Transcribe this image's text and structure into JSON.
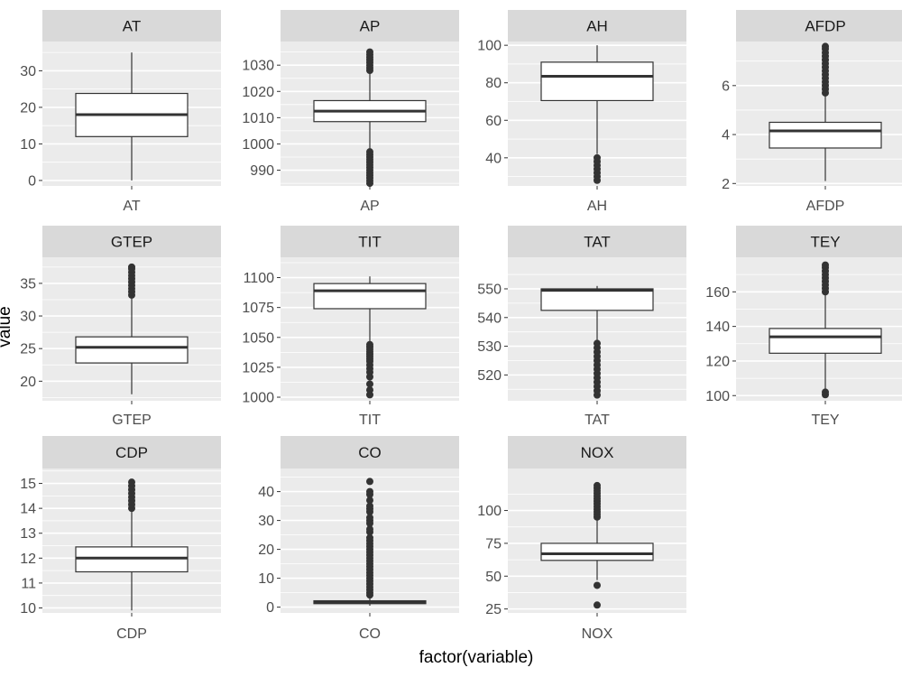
{
  "chart_data": {
    "type": "boxplot",
    "xlabel": "factor(variable)",
    "ylabel": "value",
    "colors": {
      "panel_background": "#ebebeb",
      "strip_background": "#d9d9d9",
      "grid": "#ffffff",
      "box_fill": "#ffffff",
      "box_line": "#333333"
    },
    "panels": [
      {
        "name": "AT",
        "ylim": [
          -1.5,
          38
        ],
        "yticks": [
          0,
          10,
          20,
          30
        ],
        "stats": {
          "lower_whisker": 0,
          "q1": 12,
          "median": 18,
          "q3": 23.8,
          "upper_whisker": 35
        },
        "outliers": []
      },
      {
        "name": "AP",
        "ylim": [
          984,
          1039
        ],
        "yticks": [
          990,
          1000,
          1010,
          1020,
          1030
        ],
        "stats": {
          "lower_whisker": 998,
          "q1": 1008.5,
          "median": 1012.5,
          "q3": 1016.5,
          "upper_whisker": 1027
        },
        "outliers": [
          985,
          986,
          987,
          988,
          989,
          990,
          991,
          992,
          993,
          994,
          995,
          996,
          997,
          1028,
          1029,
          1030,
          1031,
          1032,
          1033,
          1034,
          1035
        ]
      },
      {
        "name": "AH",
        "ylim": [
          25,
          102
        ],
        "yticks": [
          40,
          60,
          80,
          100
        ],
        "stats": {
          "lower_whisker": 42,
          "q1": 70.5,
          "median": 83.5,
          "q3": 91,
          "upper_whisker": 100
        },
        "outliers": [
          28,
          30,
          32,
          34,
          36,
          38,
          40
        ]
      },
      {
        "name": "AFDP",
        "ylim": [
          1.9,
          7.8
        ],
        "yticks": [
          2,
          4,
          6
        ],
        "stats": {
          "lower_whisker": 2.1,
          "q1": 3.45,
          "median": 4.15,
          "q3": 4.5,
          "upper_whisker": 5.6
        },
        "outliers": [
          5.7,
          5.85,
          6.0,
          6.15,
          6.3,
          6.45,
          6.6,
          6.75,
          6.9,
          7.05,
          7.2,
          7.35,
          7.5,
          7.6
        ]
      },
      {
        "name": "GTEP",
        "ylim": [
          17,
          39
        ],
        "yticks": [
          20,
          25,
          30,
          35
        ],
        "stats": {
          "lower_whisker": 18,
          "q1": 22.8,
          "median": 25.2,
          "q3": 26.8,
          "upper_whisker": 33
        },
        "outliers": [
          33.2,
          33.7,
          34.2,
          34.7,
          35.2,
          35.7,
          36.2,
          36.7,
          37.2,
          37.5
        ]
      },
      {
        "name": "TIT",
        "ylim": [
          997,
          1117
        ],
        "yticks": [
          1000,
          1025,
          1050,
          1075,
          1100
        ],
        "stats": {
          "lower_whisker": 1045,
          "q1": 1074,
          "median": 1089,
          "q3": 1095,
          "upper_whisker": 1101
        },
        "outliers": [
          1002,
          1006,
          1011,
          1017,
          1021,
          1024,
          1027,
          1030,
          1032,
          1034,
          1036,
          1038,
          1040,
          1042,
          1044
        ]
      },
      {
        "name": "TAT",
        "ylim": [
          511,
          561
        ],
        "yticks": [
          520,
          530,
          540,
          550
        ],
        "stats": {
          "lower_whisker": 532,
          "q1": 542.5,
          "median": 549.5,
          "q3": 550,
          "upper_whisker": 551
        },
        "outliers": [
          513,
          514.5,
          516,
          517.5,
          519,
          520.5,
          522,
          523.5,
          525,
          526.5,
          528,
          529.5,
          531
        ]
      },
      {
        "name": "TEY",
        "ylim": [
          97,
          180
        ],
        "yticks": [
          100,
          120,
          140,
          160
        ],
        "stats": {
          "lower_whisker": 104,
          "q1": 124.5,
          "median": 134,
          "q3": 138.8,
          "upper_whisker": 159
        },
        "outliers": [
          100.5,
          102,
          160,
          162,
          164,
          166,
          168,
          170,
          172,
          174,
          175.5
        ]
      },
      {
        "name": "CDP",
        "ylim": [
          9.8,
          15.6
        ],
        "yticks": [
          10,
          11,
          12,
          13,
          14,
          15
        ],
        "stats": {
          "lower_whisker": 9.9,
          "q1": 11.45,
          "median": 12.0,
          "q3": 12.45,
          "upper_whisker": 13.9
        },
        "outliers": [
          14.0,
          14.15,
          14.3,
          14.45,
          14.6,
          14.75,
          14.9,
          15.05
        ]
      },
      {
        "name": "CO",
        "ylim": [
          -2,
          48
        ],
        "yticks": [
          0,
          10,
          20,
          30,
          40
        ],
        "stats": {
          "lower_whisker": 0.5,
          "q1": 1.2,
          "median": 1.6,
          "q3": 2.2,
          "upper_whisker": 3.8
        },
        "outliers": [
          4.2,
          5,
          6,
          7,
          8,
          9,
          10,
          11,
          12,
          13,
          14,
          15,
          16,
          17,
          18,
          19,
          20,
          21,
          22,
          23,
          24,
          26,
          27,
          29,
          30,
          31,
          33,
          34,
          35,
          37,
          39,
          40,
          43.5
        ]
      },
      {
        "name": "NOX",
        "ylim": [
          22,
          132
        ],
        "yticks": [
          25,
          50,
          75,
          100
        ],
        "stats": {
          "lower_whisker": 47,
          "q1": 62,
          "median": 67,
          "q3": 75,
          "upper_whisker": 93
        },
        "outliers": [
          28,
          43,
          95,
          97,
          99,
          101,
          103,
          105,
          107,
          109,
          111,
          113,
          115,
          117,
          119
        ]
      }
    ]
  }
}
